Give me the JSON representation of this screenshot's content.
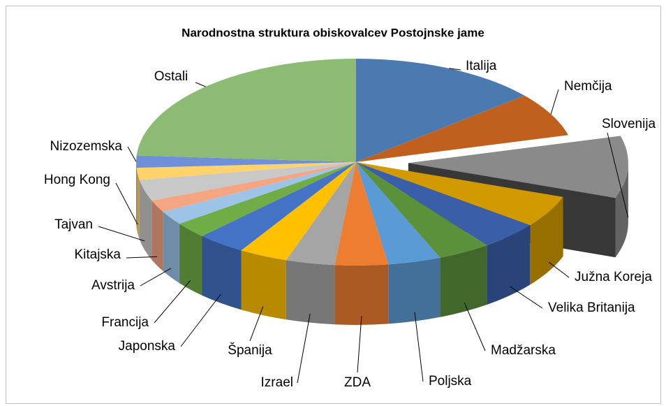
{
  "chart_data": {
    "type": "pie3d",
    "title": "Narodnostna struktura obiskovalcev Postojnske jame",
    "categories": [
      "Italija",
      "Nemčija",
      "Slovenija",
      "Južna Koreja",
      "Velika Britanija",
      "Madžarska",
      "Poljska",
      "ZDA",
      "Izrael",
      "Španija",
      "Japonska",
      "Francija",
      "Avstrija",
      "Kitajska",
      "Tajvan",
      "Hong Kong",
      "Nizozemska",
      "Ostali"
    ],
    "values": [
      13.9,
      6.9,
      9.7,
      5.0,
      4.4,
      3.9,
      3.9,
      3.9,
      3.6,
      3.6,
      3.6,
      2.5,
      2.2,
      1.9,
      3.3,
      1.9,
      1.9,
      24.0
    ],
    "colors": [
      "#4a7ab0",
      "#c0601f",
      "#8a8a8a",
      "#d19a00",
      "#3a5fa8",
      "#5a913a",
      "#5b9bd5",
      "#ed7d31",
      "#a5a5a5",
      "#ffc000",
      "#4472c4",
      "#70ad47",
      "#9dc3e6",
      "#f4a582",
      "#c8c8c8",
      "#ffd36a",
      "#6f8fd8",
      "#8cbb74"
    ],
    "exploded": "Slovenija"
  }
}
